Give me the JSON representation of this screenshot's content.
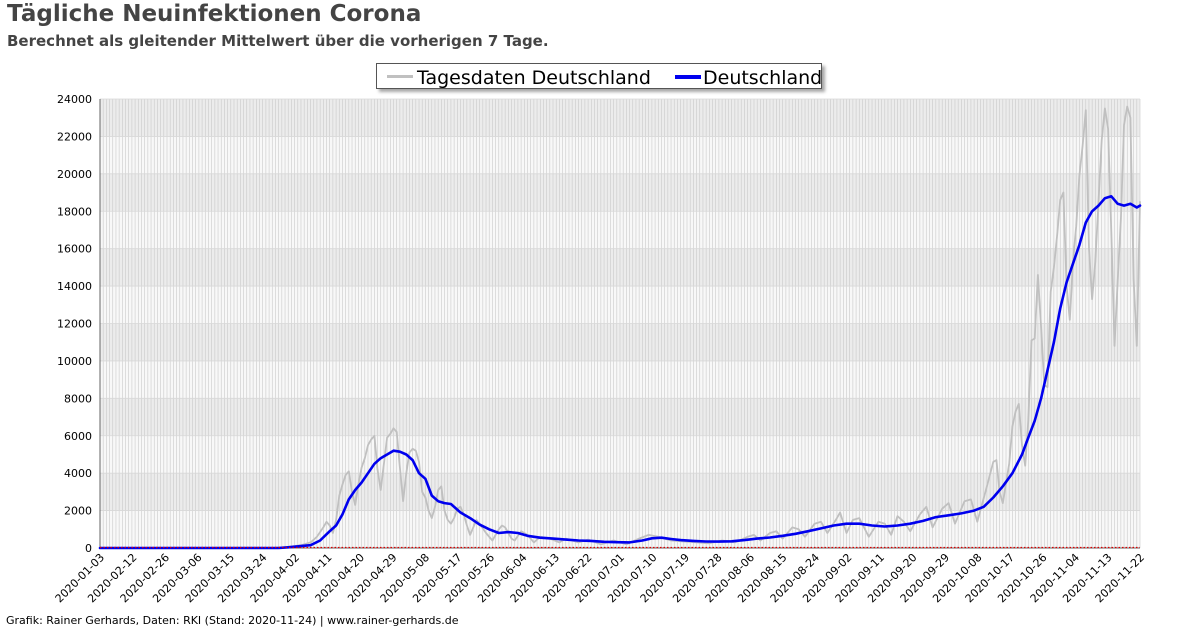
{
  "title": "Tägliche Neuinfektionen Corona",
  "subtitle": "Berechnet als gleitender Mittelwert über die vorherigen 7 Tage.",
  "footer": "Grafik: Rainer Gerhards, Daten: RKI (Stand: 2020-11-24) | www.rainer-gerhards.de",
  "chart_data": {
    "type": "line",
    "x_start": "2020-01-03",
    "x_end": "2020-11-24",
    "ylim": [
      0,
      24000
    ],
    "y_ticks": [
      0,
      2000,
      4000,
      6000,
      8000,
      10000,
      12000,
      14000,
      16000,
      18000,
      20000,
      22000,
      24000
    ],
    "x_tick_labels": [
      "2020-01-03",
      "2020-02-12",
      "2020-02-26",
      "2020-03-06",
      "2020-03-15",
      "2020-03-24",
      "2020-04-02",
      "2020-04-11",
      "2020-04-20",
      "2020-04-29",
      "2020-05-08",
      "2020-05-17",
      "2020-05-26",
      "2020-06-04",
      "2020-06-13",
      "2020-06-22",
      "2020-07-01",
      "2020-07-10",
      "2020-07-19",
      "2020-07-28",
      "2020-08-06",
      "2020-08-15",
      "2020-08-24",
      "2020-09-02",
      "2020-09-11",
      "2020-09-20",
      "2020-09-29",
      "2020-10-08",
      "2020-10-17",
      "2020-10-26",
      "2020-11-04",
      "2020-11-13",
      "2020-11-22"
    ],
    "grid": true,
    "legend_position": "top-center",
    "series": [
      {
        "name": "Tagesdaten Deutschland",
        "color": "#c0c0c0",
        "points": [
          [
            "2020-01-03",
            0
          ],
          [
            "2020-02-26",
            0
          ],
          [
            "2020-03-02",
            60
          ],
          [
            "2020-03-06",
            150
          ],
          [
            "2020-03-09",
            300
          ],
          [
            "2020-03-11",
            600
          ],
          [
            "2020-03-13",
            1100
          ],
          [
            "2020-03-14",
            1400
          ],
          [
            "2020-03-15",
            1200
          ],
          [
            "2020-03-16",
            800
          ],
          [
            "2020-03-17",
            1500
          ],
          [
            "2020-03-18",
            2800
          ],
          [
            "2020-03-19",
            3400
          ],
          [
            "2020-03-20",
            3900
          ],
          [
            "2020-03-21",
            4100
          ],
          [
            "2020-03-22",
            3000
          ],
          [
            "2020-03-23",
            2300
          ],
          [
            "2020-03-24",
            3400
          ],
          [
            "2020-03-25",
            4300
          ],
          [
            "2020-03-26",
            4800
          ],
          [
            "2020-03-27",
            5500
          ],
          [
            "2020-03-28",
            5800
          ],
          [
            "2020-03-29",
            6000
          ],
          [
            "2020-03-30",
            4200
          ],
          [
            "2020-03-31",
            3100
          ],
          [
            "2020-04-01",
            4500
          ],
          [
            "2020-04-02",
            5900
          ],
          [
            "2020-04-03",
            6100
          ],
          [
            "2020-04-04",
            6400
          ],
          [
            "2020-04-05",
            6200
          ],
          [
            "2020-04-06",
            4300
          ],
          [
            "2020-04-07",
            2500
          ],
          [
            "2020-04-08",
            4000
          ],
          [
            "2020-04-09",
            5100
          ],
          [
            "2020-04-10",
            5300
          ],
          [
            "2020-04-11",
            5200
          ],
          [
            "2020-04-12",
            4600
          ],
          [
            "2020-04-13",
            3000
          ],
          [
            "2020-04-14",
            2700
          ],
          [
            "2020-04-15",
            2000
          ],
          [
            "2020-04-16",
            1600
          ],
          [
            "2020-04-17",
            2200
          ],
          [
            "2020-04-18",
            3100
          ],
          [
            "2020-04-19",
            3300
          ],
          [
            "2020-04-20",
            2000
          ],
          [
            "2020-04-21",
            1500
          ],
          [
            "2020-04-22",
            1300
          ],
          [
            "2020-04-23",
            1600
          ],
          [
            "2020-04-24",
            2100
          ],
          [
            "2020-04-25",
            2200
          ],
          [
            "2020-04-26",
            1800
          ],
          [
            "2020-04-27",
            1200
          ],
          [
            "2020-04-28",
            700
          ],
          [
            "2020-04-29",
            1100
          ],
          [
            "2020-04-30",
            1500
          ],
          [
            "2020-05-01",
            1300
          ],
          [
            "2020-05-03",
            800
          ],
          [
            "2020-05-05",
            400
          ],
          [
            "2020-05-07",
            1000
          ],
          [
            "2020-05-08",
            1200
          ],
          [
            "2020-05-09",
            1100
          ],
          [
            "2020-05-11",
            500
          ],
          [
            "2020-05-12",
            400
          ],
          [
            "2020-05-14",
            900
          ],
          [
            "2020-05-16",
            700
          ],
          [
            "2020-05-18",
            300
          ],
          [
            "2020-05-20",
            600
          ],
          [
            "2020-05-23",
            500
          ],
          [
            "2020-05-26",
            300
          ],
          [
            "2020-05-28",
            500
          ],
          [
            "2020-06-01",
            300
          ],
          [
            "2020-06-04",
            450
          ],
          [
            "2020-06-08",
            200
          ],
          [
            "2020-06-12",
            400
          ],
          [
            "2020-06-16",
            200
          ],
          [
            "2020-06-20",
            500
          ],
          [
            "2020-06-23",
            700
          ],
          [
            "2020-06-26",
            600
          ],
          [
            "2020-06-30",
            400
          ],
          [
            "2020-07-04",
            350
          ],
          [
            "2020-07-08",
            300
          ],
          [
            "2020-07-12",
            250
          ],
          [
            "2020-07-16",
            400
          ],
          [
            "2020-07-20",
            300
          ],
          [
            "2020-07-24",
            600
          ],
          [
            "2020-07-26",
            700
          ],
          [
            "2020-07-28",
            400
          ],
          [
            "2020-07-31",
            800
          ],
          [
            "2020-08-02",
            900
          ],
          [
            "2020-08-04",
            500
          ],
          [
            "2020-08-07",
            1100
          ],
          [
            "2020-08-09",
            1000
          ],
          [
            "2020-08-11",
            600
          ],
          [
            "2020-08-14",
            1300
          ],
          [
            "2020-08-16",
            1400
          ],
          [
            "2020-08-18",
            800
          ],
          [
            "2020-08-21",
            1600
          ],
          [
            "2020-08-22",
            1900
          ],
          [
            "2020-08-24",
            800
          ],
          [
            "2020-08-26",
            1500
          ],
          [
            "2020-08-28",
            1600
          ],
          [
            "2020-08-31",
            600
          ],
          [
            "2020-09-03",
            1400
          ],
          [
            "2020-09-05",
            1300
          ],
          [
            "2020-09-07",
            700
          ],
          [
            "2020-09-09",
            1700
          ],
          [
            "2020-09-11",
            1400
          ],
          [
            "2020-09-13",
            900
          ],
          [
            "2020-09-16",
            1800
          ],
          [
            "2020-09-18",
            2200
          ],
          [
            "2020-09-20",
            1100
          ],
          [
            "2020-09-23",
            2100
          ],
          [
            "2020-09-25",
            2400
          ],
          [
            "2020-09-27",
            1300
          ],
          [
            "2020-09-30",
            2500
          ],
          [
            "2020-10-02",
            2600
          ],
          [
            "2020-10-04",
            1400
          ],
          [
            "2020-10-07",
            3300
          ],
          [
            "2020-10-09",
            4600
          ],
          [
            "2020-10-10",
            4700
          ],
          [
            "2020-10-11",
            3000
          ],
          [
            "2020-10-12",
            2400
          ],
          [
            "2020-10-14",
            4500
          ],
          [
            "2020-10-15",
            6500
          ],
          [
            "2020-10-16",
            7300
          ],
          [
            "2020-10-17",
            7700
          ],
          [
            "2020-10-18",
            5500
          ],
          [
            "2020-10-19",
            4400
          ],
          [
            "2020-10-20",
            6800
          ],
          [
            "2020-10-21",
            11100
          ],
          [
            "2020-10-22",
            11200
          ],
          [
            "2020-10-23",
            14600
          ],
          [
            "2020-10-24",
            11800
          ],
          [
            "2020-10-25",
            8700
          ],
          [
            "2020-10-26",
            8600
          ],
          [
            "2020-10-27",
            13700
          ],
          [
            "2020-10-28",
            15000
          ],
          [
            "2020-10-29",
            16700
          ],
          [
            "2020-10-30",
            18600
          ],
          [
            "2020-10-31",
            19000
          ],
          [
            "2020-11-01",
            14000
          ],
          [
            "2020-11-02",
            12200
          ],
          [
            "2020-11-03",
            15300
          ],
          [
            "2020-11-04",
            17200
          ],
          [
            "2020-11-05",
            19900
          ],
          [
            "2020-11-06",
            21500
          ],
          [
            "2020-11-07",
            23400
          ],
          [
            "2020-11-08",
            16000
          ],
          [
            "2020-11-09",
            13300
          ],
          [
            "2020-11-10",
            15300
          ],
          [
            "2020-11-11",
            18500
          ],
          [
            "2020-11-12",
            21800
          ],
          [
            "2020-11-13",
            23500
          ],
          [
            "2020-11-14",
            22400
          ],
          [
            "2020-11-15",
            16900
          ],
          [
            "2020-11-16",
            10800
          ],
          [
            "2020-11-17",
            14300
          ],
          [
            "2020-11-18",
            17600
          ],
          [
            "2020-11-19",
            22600
          ],
          [
            "2020-11-20",
            23600
          ],
          [
            "2020-11-21",
            23000
          ],
          [
            "2020-11-22",
            14400
          ],
          [
            "2020-11-23",
            10800
          ],
          [
            "2020-11-24",
            18500
          ]
        ]
      },
      {
        "name": "Deutschland",
        "color": "#0000ee",
        "points": [
          [
            "2020-01-03",
            0
          ],
          [
            "2020-02-28",
            0
          ],
          [
            "2020-03-02",
            40
          ],
          [
            "2020-03-06",
            100
          ],
          [
            "2020-03-09",
            150
          ],
          [
            "2020-03-12",
            400
          ],
          [
            "2020-03-15",
            900
          ],
          [
            "2020-03-17",
            1200
          ],
          [
            "2020-03-19",
            1800
          ],
          [
            "2020-03-21",
            2600
          ],
          [
            "2020-03-23",
            3100
          ],
          [
            "2020-03-25",
            3500
          ],
          [
            "2020-03-27",
            4000
          ],
          [
            "2020-03-29",
            4500
          ],
          [
            "2020-03-31",
            4800
          ],
          [
            "2020-04-02",
            5000
          ],
          [
            "2020-04-04",
            5200
          ],
          [
            "2020-04-06",
            5150
          ],
          [
            "2020-04-08",
            5000
          ],
          [
            "2020-04-10",
            4700
          ],
          [
            "2020-04-12",
            4000
          ],
          [
            "2020-04-14",
            3700
          ],
          [
            "2020-04-16",
            2800
          ],
          [
            "2020-04-18",
            2500
          ],
          [
            "2020-04-20",
            2400
          ],
          [
            "2020-04-22",
            2350
          ],
          [
            "2020-04-25",
            1900
          ],
          [
            "2020-04-28",
            1600
          ],
          [
            "2020-05-01",
            1250
          ],
          [
            "2020-05-04",
            1000
          ],
          [
            "2020-05-07",
            800
          ],
          [
            "2020-05-10",
            850
          ],
          [
            "2020-05-13",
            800
          ],
          [
            "2020-05-16",
            650
          ],
          [
            "2020-05-20",
            550
          ],
          [
            "2020-05-24",
            500
          ],
          [
            "2020-05-28",
            450
          ],
          [
            "2020-06-01",
            400
          ],
          [
            "2020-06-05",
            380
          ],
          [
            "2020-06-09",
            330
          ],
          [
            "2020-06-13",
            310
          ],
          [
            "2020-06-17",
            300
          ],
          [
            "2020-06-21",
            400
          ],
          [
            "2020-06-24",
            520
          ],
          [
            "2020-06-27",
            550
          ],
          [
            "2020-06-30",
            480
          ],
          [
            "2020-07-03",
            420
          ],
          [
            "2020-07-07",
            380
          ],
          [
            "2020-07-11",
            350
          ],
          [
            "2020-07-15",
            340
          ],
          [
            "2020-07-19",
            360
          ],
          [
            "2020-07-23",
            420
          ],
          [
            "2020-07-27",
            500
          ],
          [
            "2020-07-31",
            560
          ],
          [
            "2020-08-04",
            650
          ],
          [
            "2020-08-08",
            760
          ],
          [
            "2020-08-12",
            900
          ],
          [
            "2020-08-16",
            1050
          ],
          [
            "2020-08-20",
            1200
          ],
          [
            "2020-08-24",
            1300
          ],
          [
            "2020-08-28",
            1300
          ],
          [
            "2020-09-01",
            1200
          ],
          [
            "2020-09-05",
            1150
          ],
          [
            "2020-09-09",
            1200
          ],
          [
            "2020-09-13",
            1300
          ],
          [
            "2020-09-17",
            1450
          ],
          [
            "2020-09-21",
            1650
          ],
          [
            "2020-09-25",
            1750
          ],
          [
            "2020-09-29",
            1850
          ],
          [
            "2020-10-03",
            2000
          ],
          [
            "2020-10-06",
            2200
          ],
          [
            "2020-10-09",
            2700
          ],
          [
            "2020-10-12",
            3300
          ],
          [
            "2020-10-15",
            4000
          ],
          [
            "2020-10-18",
            5000
          ],
          [
            "2020-10-20",
            5900
          ],
          [
            "2020-10-22",
            6800
          ],
          [
            "2020-10-24",
            8000
          ],
          [
            "2020-10-26",
            9500
          ],
          [
            "2020-10-28",
            11000
          ],
          [
            "2020-10-30",
            12800
          ],
          [
            "2020-11-01",
            14200
          ],
          [
            "2020-11-03",
            15200
          ],
          [
            "2020-11-05",
            16200
          ],
          [
            "2020-11-07",
            17400
          ],
          [
            "2020-11-09",
            18000
          ],
          [
            "2020-11-11",
            18300
          ],
          [
            "2020-11-13",
            18700
          ],
          [
            "2020-11-15",
            18800
          ],
          [
            "2020-11-17",
            18400
          ],
          [
            "2020-11-19",
            18300
          ],
          [
            "2020-11-21",
            18400
          ],
          [
            "2020-11-23",
            18200
          ],
          [
            "2020-11-24",
            18300
          ]
        ]
      }
    ]
  }
}
